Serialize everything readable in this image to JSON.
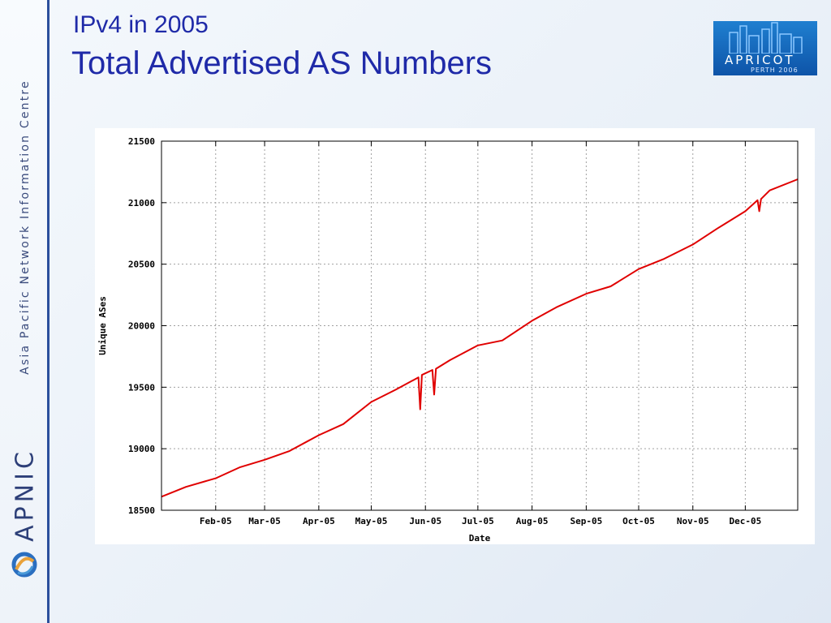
{
  "slide": {
    "title_line1": "IPv4 in 2005",
    "title_line2": "Total Advertised AS Numbers"
  },
  "sidebar": {
    "org_name": "Asia Pacific Network Information Centre",
    "logo_text": "APNIC"
  },
  "badge": {
    "word": "APRICOT",
    "sub": "PERTH 2006"
  },
  "colors": {
    "title": "#1f2aa8",
    "series": "#e00000",
    "grid": "#a0a0a0",
    "sidebar_border": "#2b4f9c"
  },
  "icons": [
    "apnic-swirl-icon",
    "skyline-icon"
  ],
  "chart_data": {
    "type": "line",
    "title": "",
    "xlabel": "Date",
    "ylabel": "Unique ASes",
    "ylim": [
      18500,
      21500
    ],
    "yticks": [
      18500,
      19000,
      19500,
      20000,
      20500,
      21000,
      21500
    ],
    "xlim": [
      "2005-01-01",
      "2005-12-31"
    ],
    "xticks": [
      {
        "date": "2005-02-01",
        "label": "Feb-05"
      },
      {
        "date": "2005-03-01",
        "label": "Mar-05"
      },
      {
        "date": "2005-04-01",
        "label": "Apr-05"
      },
      {
        "date": "2005-05-01",
        "label": "May-05"
      },
      {
        "date": "2005-06-01",
        "label": "Jun-05"
      },
      {
        "date": "2005-07-01",
        "label": "Jul-05"
      },
      {
        "date": "2005-08-01",
        "label": "Aug-05"
      },
      {
        "date": "2005-09-01",
        "label": "Sep-05"
      },
      {
        "date": "2005-10-01",
        "label": "Oct-05"
      },
      {
        "date": "2005-11-01",
        "label": "Nov-05"
      },
      {
        "date": "2005-12-01",
        "label": "Dec-05"
      }
    ],
    "grid": true,
    "series": [
      {
        "color": "#e00000",
        "points": [
          {
            "x": "2005-01-01",
            "y": 18610
          },
          {
            "x": "2005-01-15",
            "y": 18690
          },
          {
            "x": "2005-02-01",
            "y": 18760
          },
          {
            "x": "2005-02-15",
            "y": 18850
          },
          {
            "x": "2005-03-01",
            "y": 18910
          },
          {
            "x": "2005-03-15",
            "y": 18980
          },
          {
            "x": "2005-04-01",
            "y": 19110
          },
          {
            "x": "2005-04-15",
            "y": 19200
          },
          {
            "x": "2005-05-01",
            "y": 19380
          },
          {
            "x": "2005-05-15",
            "y": 19480
          },
          {
            "x": "2005-05-28",
            "y": 19580
          },
          {
            "x": "2005-05-29",
            "y": 19320
          },
          {
            "x": "2005-05-30",
            "y": 19600
          },
          {
            "x": "2005-06-05",
            "y": 19640
          },
          {
            "x": "2005-06-06",
            "y": 19440
          },
          {
            "x": "2005-06-07",
            "y": 19650
          },
          {
            "x": "2005-06-15",
            "y": 19720
          },
          {
            "x": "2005-07-01",
            "y": 19840
          },
          {
            "x": "2005-07-15",
            "y": 19880
          },
          {
            "x": "2005-08-01",
            "y": 20040
          },
          {
            "x": "2005-08-15",
            "y": 20150
          },
          {
            "x": "2005-09-01",
            "y": 20260
          },
          {
            "x": "2005-09-15",
            "y": 20320
          },
          {
            "x": "2005-10-01",
            "y": 20460
          },
          {
            "x": "2005-10-15",
            "y": 20540
          },
          {
            "x": "2005-11-01",
            "y": 20660
          },
          {
            "x": "2005-11-15",
            "y": 20790
          },
          {
            "x": "2005-12-01",
            "y": 20930
          },
          {
            "x": "2005-12-08",
            "y": 21020
          },
          {
            "x": "2005-12-09",
            "y": 20930
          },
          {
            "x": "2005-12-10",
            "y": 21030
          },
          {
            "x": "2005-12-15",
            "y": 21100
          },
          {
            "x": "2005-12-31",
            "y": 21190
          }
        ]
      }
    ]
  }
}
